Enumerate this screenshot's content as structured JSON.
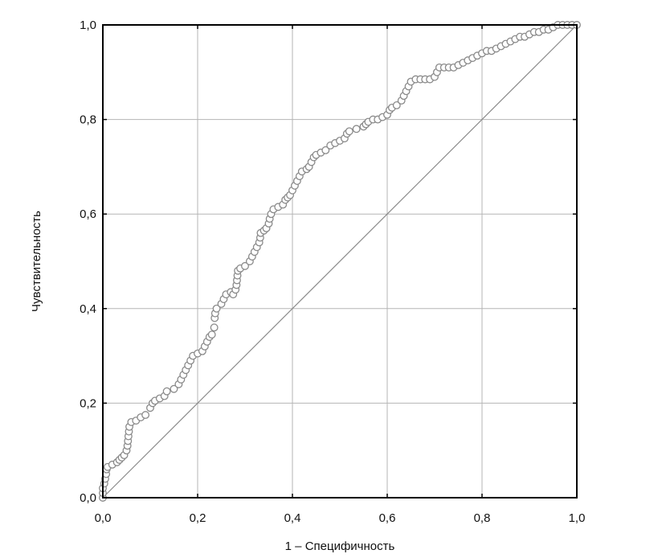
{
  "chart_data": {
    "type": "scatter",
    "title": "",
    "xlabel": "1 – Специфичность",
    "ylabel": "Чувствительность",
    "xlim": [
      0,
      1
    ],
    "ylim": [
      0,
      1
    ],
    "grid": true,
    "x_ticks": [
      "0,0",
      "0,2",
      "0,4",
      "0,6",
      "0,8",
      "1,0"
    ],
    "y_ticks": [
      "0,0",
      "0,2",
      "0,4",
      "0,6",
      "0,8",
      "1,0"
    ],
    "reference_line": [
      [
        0,
        0
      ],
      [
        1,
        1
      ]
    ],
    "roc_points": [
      [
        0.0,
        0.0
      ],
      [
        0.0,
        0.01
      ],
      [
        0.0,
        0.02
      ],
      [
        0.003,
        0.03
      ],
      [
        0.005,
        0.04
      ],
      [
        0.007,
        0.05
      ],
      [
        0.008,
        0.06
      ],
      [
        0.01,
        0.065
      ],
      [
        0.02,
        0.07
      ],
      [
        0.03,
        0.075
      ],
      [
        0.035,
        0.08
      ],
      [
        0.04,
        0.085
      ],
      [
        0.045,
        0.09
      ],
      [
        0.05,
        0.1
      ],
      [
        0.052,
        0.11
      ],
      [
        0.053,
        0.12
      ],
      [
        0.054,
        0.13
      ],
      [
        0.055,
        0.14
      ],
      [
        0.056,
        0.15
      ],
      [
        0.06,
        0.16
      ],
      [
        0.07,
        0.163
      ],
      [
        0.08,
        0.17
      ],
      [
        0.09,
        0.175
      ],
      [
        0.1,
        0.19
      ],
      [
        0.105,
        0.2
      ],
      [
        0.11,
        0.205
      ],
      [
        0.12,
        0.21
      ],
      [
        0.13,
        0.215
      ],
      [
        0.135,
        0.225
      ],
      [
        0.15,
        0.23
      ],
      [
        0.16,
        0.24
      ],
      [
        0.165,
        0.25
      ],
      [
        0.17,
        0.26
      ],
      [
        0.175,
        0.27
      ],
      [
        0.18,
        0.28
      ],
      [
        0.185,
        0.29
      ],
      [
        0.19,
        0.3
      ],
      [
        0.2,
        0.305
      ],
      [
        0.21,
        0.31
      ],
      [
        0.215,
        0.32
      ],
      [
        0.22,
        0.33
      ],
      [
        0.225,
        0.34
      ],
      [
        0.23,
        0.345
      ],
      [
        0.235,
        0.36
      ],
      [
        0.236,
        0.38
      ],
      [
        0.237,
        0.39
      ],
      [
        0.24,
        0.4
      ],
      [
        0.25,
        0.41
      ],
      [
        0.255,
        0.42
      ],
      [
        0.26,
        0.43
      ],
      [
        0.27,
        0.435
      ],
      [
        0.275,
        0.43
      ],
      [
        0.28,
        0.44
      ],
      [
        0.282,
        0.45
      ],
      [
        0.283,
        0.46
      ],
      [
        0.284,
        0.47
      ],
      [
        0.285,
        0.48
      ],
      [
        0.29,
        0.485
      ],
      [
        0.3,
        0.49
      ],
      [
        0.31,
        0.5
      ],
      [
        0.315,
        0.51
      ],
      [
        0.32,
        0.52
      ],
      [
        0.325,
        0.53
      ],
      [
        0.33,
        0.54
      ],
      [
        0.332,
        0.55
      ],
      [
        0.333,
        0.56
      ],
      [
        0.34,
        0.565
      ],
      [
        0.345,
        0.57
      ],
      [
        0.35,
        0.58
      ],
      [
        0.352,
        0.59
      ],
      [
        0.355,
        0.6
      ],
      [
        0.36,
        0.61
      ],
      [
        0.37,
        0.615
      ],
      [
        0.38,
        0.62
      ],
      [
        0.385,
        0.63
      ],
      [
        0.39,
        0.635
      ],
      [
        0.395,
        0.64
      ],
      [
        0.4,
        0.65
      ],
      [
        0.405,
        0.66
      ],
      [
        0.41,
        0.67
      ],
      [
        0.415,
        0.68
      ],
      [
        0.42,
        0.69
      ],
      [
        0.43,
        0.695
      ],
      [
        0.435,
        0.7
      ],
      [
        0.44,
        0.71
      ],
      [
        0.445,
        0.72
      ],
      [
        0.45,
        0.725
      ],
      [
        0.46,
        0.73
      ],
      [
        0.47,
        0.735
      ],
      [
        0.48,
        0.745
      ],
      [
        0.49,
        0.75
      ],
      [
        0.5,
        0.755
      ],
      [
        0.51,
        0.76
      ],
      [
        0.515,
        0.77
      ],
      [
        0.52,
        0.775
      ],
      [
        0.535,
        0.78
      ],
      [
        0.55,
        0.785
      ],
      [
        0.555,
        0.79
      ],
      [
        0.56,
        0.795
      ],
      [
        0.57,
        0.8
      ],
      [
        0.58,
        0.8
      ],
      [
        0.59,
        0.805
      ],
      [
        0.6,
        0.81
      ],
      [
        0.605,
        0.82
      ],
      [
        0.61,
        0.825
      ],
      [
        0.62,
        0.83
      ],
      [
        0.63,
        0.84
      ],
      [
        0.635,
        0.85
      ],
      [
        0.64,
        0.86
      ],
      [
        0.645,
        0.87
      ],
      [
        0.65,
        0.88
      ],
      [
        0.66,
        0.885
      ],
      [
        0.67,
        0.885
      ],
      [
        0.68,
        0.885
      ],
      [
        0.69,
        0.885
      ],
      [
        0.7,
        0.89
      ],
      [
        0.705,
        0.9
      ],
      [
        0.71,
        0.91
      ],
      [
        0.72,
        0.91
      ],
      [
        0.73,
        0.91
      ],
      [
        0.74,
        0.91
      ],
      [
        0.75,
        0.915
      ],
      [
        0.76,
        0.92
      ],
      [
        0.77,
        0.925
      ],
      [
        0.78,
        0.93
      ],
      [
        0.79,
        0.935
      ],
      [
        0.8,
        0.94
      ],
      [
        0.81,
        0.945
      ],
      [
        0.82,
        0.945
      ],
      [
        0.83,
        0.95
      ],
      [
        0.84,
        0.955
      ],
      [
        0.85,
        0.96
      ],
      [
        0.86,
        0.965
      ],
      [
        0.87,
        0.97
      ],
      [
        0.88,
        0.975
      ],
      [
        0.89,
        0.975
      ],
      [
        0.9,
        0.98
      ],
      [
        0.91,
        0.985
      ],
      [
        0.92,
        0.985
      ],
      [
        0.93,
        0.99
      ],
      [
        0.94,
        0.99
      ],
      [
        0.95,
        0.995
      ],
      [
        0.96,
        1.0
      ],
      [
        0.97,
        1.0
      ],
      [
        0.98,
        1.0
      ],
      [
        0.99,
        1.0
      ],
      [
        1.0,
        1.0
      ]
    ]
  }
}
